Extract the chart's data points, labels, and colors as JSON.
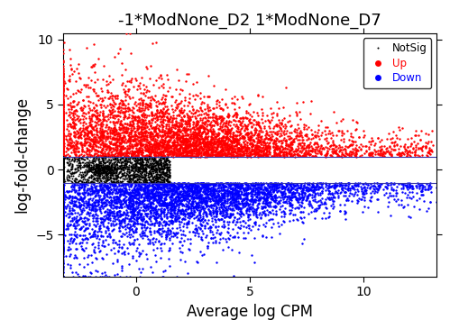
{
  "title": "-1*ModNone_D2 1*ModNone_D7",
  "xlabel": "Average log CPM",
  "ylabel": "log-fold-change",
  "xlim": [
    -3.2,
    13.2
  ],
  "ylim": [
    -8.2,
    10.5
  ],
  "xticks": [
    0,
    5,
    10
  ],
  "yticks": [
    -5,
    0,
    5,
    10
  ],
  "hline1": 1.0,
  "hline2": -1.0,
  "hline_color": "#3333aa",
  "notsig_color": "#000000",
  "up_color": "#ff0000",
  "down_color": "#0000ff",
  "point_size": 3.0,
  "notsig_size": 2.0,
  "seed": 42,
  "legend_entries": [
    "NotSig",
    "Up",
    "Down"
  ],
  "legend_colors": [
    "#000000",
    "#ff0000",
    "#0000ff"
  ],
  "title_fontsize": 13,
  "axis_label_fontsize": 12,
  "tick_fontsize": 10,
  "background_color": "#ffffff"
}
